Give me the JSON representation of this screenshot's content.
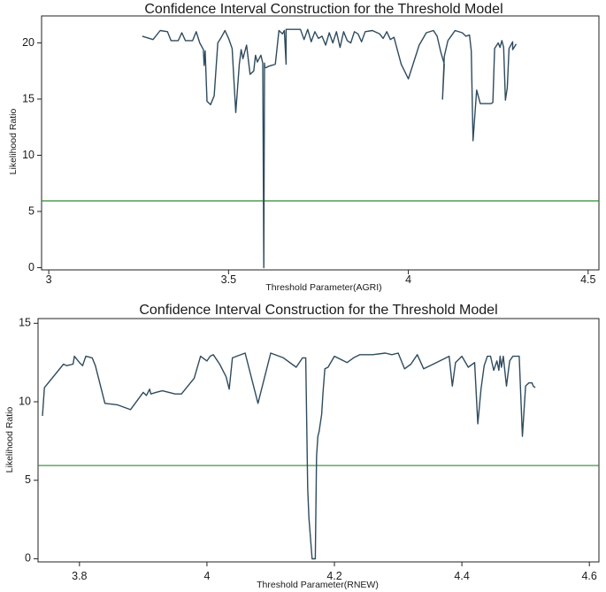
{
  "chart_data": [
    {
      "type": "line",
      "title": "Confidence Interval Construction for the Threshold Model",
      "xlabel": "Threshold Parameter(AGRI)",
      "ylabel": "Likelihood Ratio",
      "xlim": [
        2.98,
        4.53
      ],
      "ylim": [
        -0.2,
        22.4
      ],
      "xticks": [
        "3",
        "3.5",
        "4",
        "4.5"
      ],
      "xtick_values": [
        3,
        3.5,
        4,
        4.5
      ],
      "yticks": [
        "0",
        "5",
        "10",
        "15",
        "20"
      ],
      "ytick_values": [
        0,
        5,
        10,
        15,
        20
      ],
      "grid": false,
      "line_color": "#2f4b5e",
      "threshold_line": {
        "value": 5.94,
        "color": "#2e8b2e"
      },
      "series": [
        {
          "x": [
            3.26,
            3.29,
            3.31,
            3.33,
            3.34,
            3.36,
            3.37,
            3.38,
            3.4,
            3.41,
            3.42,
            3.43,
            3.432,
            3.435,
            3.44,
            3.45,
            3.46,
            3.47,
            3.48,
            3.49,
            3.5,
            3.51,
            3.52,
            3.53,
            3.535,
            3.54,
            3.55,
            3.56,
            3.57,
            3.575,
            3.58,
            3.59,
            3.595,
            3.598,
            3.6,
            3.601,
            3.605,
            3.61,
            3.63,
            3.64,
            3.65,
            3.655,
            3.66,
            3.66,
            3.7,
            3.71,
            3.72,
            3.73,
            3.74,
            3.75,
            3.76,
            3.77,
            3.78,
            3.79,
            3.8,
            3.81,
            3.82,
            3.83,
            3.84,
            3.85,
            3.86,
            3.87,
            3.88,
            3.9,
            3.92,
            3.93,
            3.94,
            3.95,
            3.96,
            3.98,
            4.0,
            4.03,
            4.05,
            4.07,
            4.08,
            4.09,
            4.1,
            4.095,
            4.1,
            4.11,
            4.13,
            4.15,
            4.16,
            4.17,
            4.175,
            4.18,
            4.19,
            4.2,
            4.21,
            4.22,
            4.23,
            4.235,
            4.24,
            4.25,
            4.255,
            4.26,
            4.265,
            4.27,
            4.275,
            4.28,
            4.29,
            4.29,
            4.3
          ],
          "y": [
            20.6,
            20.3,
            21.1,
            21.0,
            20.2,
            20.2,
            20.9,
            20.2,
            20.2,
            21.0,
            20.0,
            19.4,
            18.0,
            19.3,
            14.8,
            14.5,
            15.3,
            20.0,
            20.5,
            21.1,
            20.4,
            19.5,
            13.8,
            18.1,
            19.4,
            18.6,
            19.8,
            17.2,
            17.5,
            18.9,
            18.3,
            18.9,
            18.2,
            0.0,
            18.2,
            17.8,
            17.8,
            17.9,
            18.1,
            21.1,
            20.8,
            21.1,
            18.1,
            21.2,
            21.2,
            20.3,
            21.2,
            20.1,
            21.0,
            20.4,
            20.6,
            19.8,
            20.9,
            20.0,
            21.0,
            19.6,
            21.0,
            20.2,
            20.0,
            21.0,
            20.8,
            20.1,
            21.0,
            21.1,
            20.8,
            20.4,
            21.0,
            20.3,
            20.5,
            18.1,
            16.8,
            19.8,
            20.9,
            21.1,
            20.6,
            19.2,
            18.1,
            15.0,
            18.8,
            20.2,
            21.1,
            20.9,
            20.6,
            20.7,
            19.3,
            11.3,
            15.8,
            14.6,
            14.6,
            14.6,
            14.6,
            14.7,
            19.5,
            20.0,
            19.6,
            20.2,
            19.6,
            14.9,
            16.0,
            19.5,
            20.1,
            19.4,
            19.9
          ],
          "order": "sorted"
        }
      ]
    },
    {
      "type": "line",
      "title": "Confidence Interval Construction for the Threshold Model",
      "xlabel": "Threshold Parameter(RNEW)",
      "ylabel": "Likelihood Ratio",
      "xlim": [
        3.735,
        4.615
      ],
      "ylim": [
        -0.2,
        15.3
      ],
      "xticks": [
        "3.8",
        "4",
        "4.2",
        "4.4",
        "4.6"
      ],
      "xtick_values": [
        3.8,
        4.0,
        4.2,
        4.4,
        4.6
      ],
      "yticks": [
        "0",
        "5",
        "10",
        "15"
      ],
      "ytick_values": [
        0,
        5,
        10,
        15
      ],
      "grid": false,
      "line_color": "#2f4b5e",
      "threshold_line": {
        "value": 5.94,
        "color": "#2e8b2e"
      },
      "series": [
        {
          "x": [
            3.742,
            3.745,
            3.775,
            3.78,
            3.79,
            3.792,
            3.8,
            3.805,
            3.81,
            3.82,
            3.825,
            3.84,
            3.86,
            3.88,
            3.9,
            3.905,
            3.91,
            3.912,
            3.92,
            3.93,
            3.95,
            3.96,
            3.97,
            3.98,
            3.99,
            4.0,
            4.005,
            4.01,
            4.02,
            4.03,
            4.035,
            4.04,
            4.06,
            4.08,
            4.09,
            4.1,
            4.12,
            4.14,
            4.15,
            4.155,
            4.158,
            4.16,
            4.165,
            4.17,
            4.172,
            4.174,
            4.176,
            4.18,
            4.182,
            4.185,
            4.19,
            4.2,
            4.22,
            4.23,
            4.24,
            4.26,
            4.28,
            4.29,
            4.3,
            4.31,
            4.32,
            4.33,
            4.34,
            4.36,
            4.38,
            4.385,
            4.39,
            4.4,
            4.41,
            4.42,
            4.425,
            4.43,
            4.435,
            4.44,
            4.445,
            4.45,
            4.455,
            4.458,
            4.46,
            4.462,
            4.465,
            4.47,
            4.475,
            4.48,
            4.485,
            4.49,
            4.495,
            4.5,
            4.505,
            4.51,
            4.512,
            4.515
          ],
          "y": [
            9.1,
            10.9,
            12.4,
            12.3,
            12.4,
            12.9,
            12.5,
            12.3,
            12.9,
            12.8,
            12.3,
            9.9,
            9.8,
            9.5,
            10.6,
            10.4,
            10.8,
            10.5,
            10.6,
            10.7,
            10.5,
            10.5,
            11.0,
            11.5,
            12.9,
            12.6,
            12.9,
            13.0,
            12.4,
            11.6,
            10.8,
            12.8,
            13.1,
            9.9,
            11.5,
            13.1,
            12.8,
            12.2,
            12.8,
            12.8,
            4.5,
            2.6,
            0.0,
            0.0,
            6.5,
            7.8,
            8.1,
            9.2,
            10.5,
            12.1,
            12.2,
            12.9,
            12.5,
            12.8,
            13.0,
            13.0,
            13.1,
            13.0,
            13.1,
            12.1,
            12.4,
            13.0,
            12.1,
            12.5,
            12.9,
            11.0,
            12.5,
            12.9,
            12.2,
            12.5,
            8.6,
            10.8,
            12.3,
            12.9,
            12.9,
            12.0,
            12.6,
            12.0,
            12.9,
            12.2,
            12.9,
            11.0,
            12.6,
            12.9,
            12.9,
            12.9,
            7.8,
            11.0,
            11.2,
            11.2,
            11.0,
            10.9
          ],
          "order": "sorted"
        }
      ]
    }
  ]
}
